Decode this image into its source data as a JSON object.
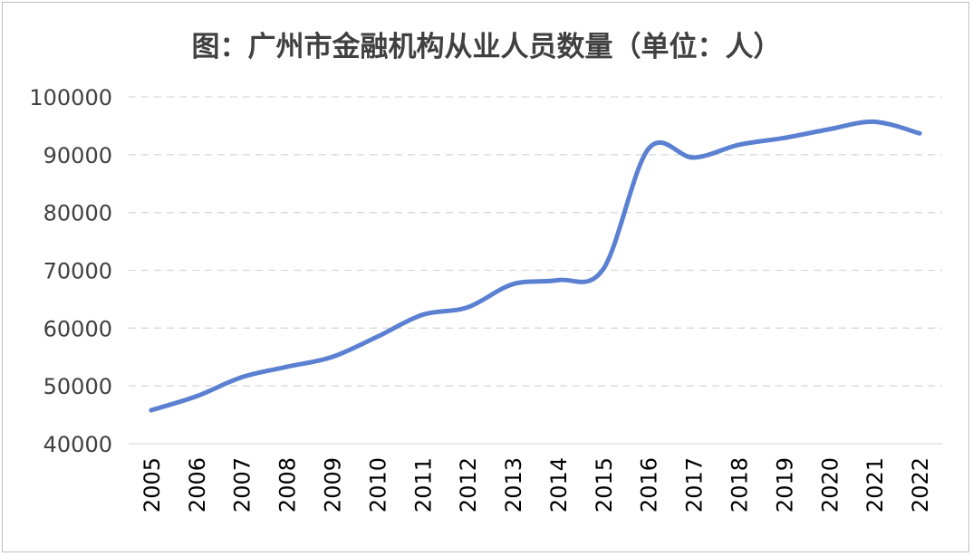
{
  "chart_data": {
    "type": "line",
    "title": "图：广州市金融机构从业人员数量（单位：人）",
    "categories": [
      "2005",
      "2006",
      "2007",
      "2008",
      "2009",
      "2010",
      "2011",
      "2012",
      "2013",
      "2014",
      "2015",
      "2016",
      "2017",
      "2018",
      "2019",
      "2020",
      "2021",
      "2022"
    ],
    "series": [
      {
        "values": [
          45800,
          48200,
          51500,
          53300,
          55000,
          58500,
          62300,
          63600,
          67600,
          68300,
          70200,
          91000,
          89500,
          91700,
          92900,
          94400,
          95700,
          93700
        ],
        "color": "#5b80d1"
      }
    ],
    "ylim": [
      40000,
      100000
    ],
    "yticks": [
      "100000",
      "90000",
      "80000",
      "70000",
      "60000",
      "50000",
      "40000"
    ],
    "grid": true,
    "xlabel": "",
    "ylabel": ""
  }
}
